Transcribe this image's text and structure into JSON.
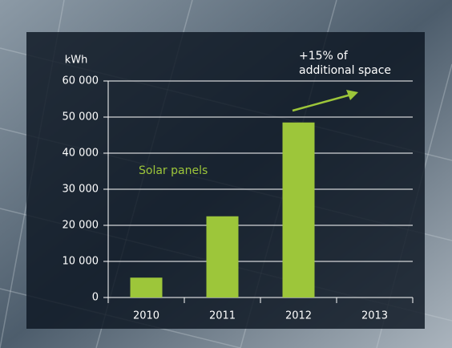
{
  "chart_data": {
    "type": "bar",
    "ylabel": "kWh",
    "annotation": [
      "+15% of",
      "additional space"
    ],
    "categories": [
      "2010",
      "2011",
      "2012",
      "2013"
    ],
    "series": [
      {
        "name": "Solar panels",
        "color": "#9dc63a",
        "values": [
          5500,
          22500,
          48500,
          null
        ]
      }
    ],
    "ylim": [
      0,
      60000
    ],
    "yticks": [
      0,
      {
        "value": 10000,
        "label": "10 000"
      },
      {
        "value": 20000,
        "label": "20 000"
      },
      {
        "value": 30000,
        "label": "30 000"
      },
      {
        "value": 40000,
        "label": "40 000"
      },
      {
        "value": 50000,
        "label": "50 000"
      },
      {
        "value": 60000,
        "label": "60 000"
      }
    ],
    "grid": true
  }
}
